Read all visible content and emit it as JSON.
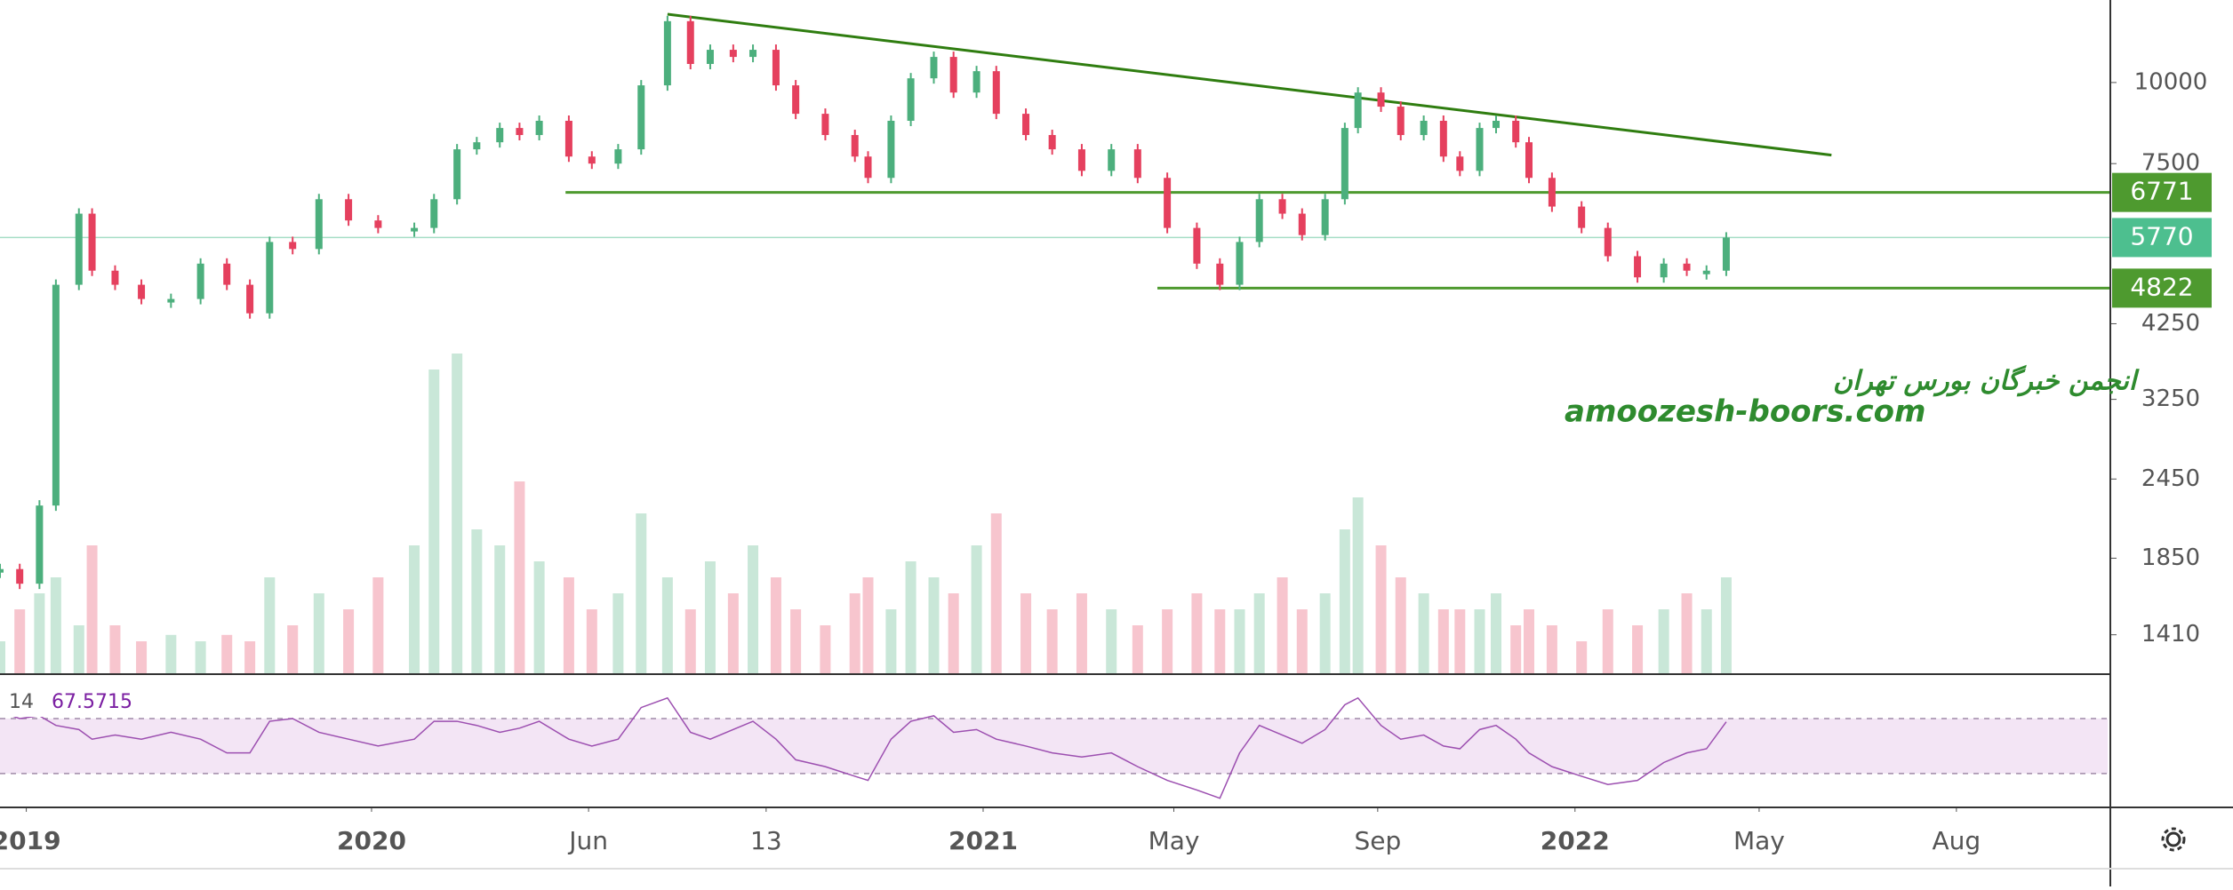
{
  "chart_data": {
    "type": "candlestick",
    "log_scale": true,
    "x": [
      -8,
      -2,
      4,
      9,
      16,
      20,
      27,
      35,
      44,
      53,
      61,
      68,
      74,
      81,
      89,
      98,
      107,
      118,
      124,
      131,
      137,
      144,
      150,
      156,
      165,
      172,
      180,
      187,
      195,
      202,
      208,
      215,
      221,
      228,
      234,
      243,
      252,
      256,
      263,
      269,
      276,
      282,
      289,
      295,
      304,
      312,
      321,
      330,
      338,
      347,
      356,
      363,
      369,
      375,
      382,
      388,
      395,
      401,
      405,
      412,
      418,
      425,
      431,
      436,
      442,
      447,
      453,
      457,
      464,
      473,
      481,
      490,
      498,
      505,
      511,
      517
    ],
    "close": [
      1780,
      1690,
      2230,
      4880,
      6280,
      5130,
      4880,
      4640,
      4640,
      5260,
      4880,
      4410,
      5680,
      5540,
      6610,
      6130,
      5970,
      5970,
      6610,
      7890,
      8090,
      8510,
      8300,
      8730,
      7690,
      7500,
      7890,
      9900,
      12430,
      10680,
      11230,
      10950,
      11230,
      9900,
      8950,
      8300,
      7690,
      7130,
      8730,
      10150,
      10950,
      9650,
      10410,
      8950,
      8300,
      7890,
      7310,
      7890,
      7130,
      5970,
      5260,
      4880,
      5680,
      6610,
      6280,
      5820,
      6610,
      8510,
      9650,
      9180,
      8300,
      8730,
      7690,
      7310,
      8510,
      8730,
      8090,
      7130,
      6440,
      5970,
      5400,
      5010,
      5260,
      5130,
      5130,
      5770
    ],
    "volume": [
      10,
      20,
      25,
      30,
      15,
      40,
      15,
      10,
      12,
      10,
      12,
      10,
      30,
      15,
      25,
      20,
      30,
      40,
      95,
      100,
      45,
      40,
      60,
      35,
      30,
      20,
      25,
      50,
      30,
      20,
      35,
      25,
      40,
      30,
      20,
      15,
      25,
      30,
      20,
      35,
      30,
      25,
      40,
      50,
      25,
      20,
      25,
      20,
      15,
      20,
      25,
      20,
      20,
      25,
      30,
      20,
      25,
      45,
      55,
      40,
      30,
      25,
      20,
      20,
      20,
      25,
      15,
      20,
      15,
      10,
      20,
      15,
      20,
      25,
      20,
      30
    ],
    "rsi": [
      75,
      70,
      72,
      65,
      62,
      55,
      58,
      55,
      60,
      55,
      45,
      45,
      68,
      70,
      60,
      55,
      50,
      55,
      68,
      68,
      65,
      60,
      63,
      68,
      55,
      50,
      55,
      78,
      85,
      60,
      55,
      62,
      68,
      55,
      40,
      35,
      28,
      25,
      55,
      68,
      72,
      60,
      62,
      55,
      50,
      45,
      42,
      45,
      35,
      25,
      18,
      12,
      45,
      65,
      58,
      52,
      62,
      80,
      85,
      65,
      55,
      58,
      50,
      48,
      62,
      65,
      55,
      45,
      35,
      28,
      22,
      25,
      38,
      45,
      48,
      67.5715
    ],
    "up_color": "#4caf7d",
    "down_color": "#e5405e",
    "xlim": [
      -8,
      633
    ],
    "xticks": [
      {
        "value": 0,
        "label": "2019"
      },
      {
        "value": 105,
        "label": "2020"
      },
      {
        "value": 171,
        "label": "Jun"
      },
      {
        "value": 225,
        "label": "13"
      },
      {
        "value": 291,
        "label": "2021"
      },
      {
        "value": 349,
        "label": "May"
      },
      {
        "value": 411,
        "label": "Sep"
      },
      {
        "value": 471,
        "label": "2022"
      },
      {
        "value": 527,
        "label": "May"
      },
      {
        "value": 587,
        "label": "Aug"
      }
    ],
    "ylim": [
      1230,
      13400
    ],
    "yticks": [
      1410,
      1850,
      2450,
      3250,
      4250,
      7500,
      10000
    ],
    "levels": [
      {
        "value": 6771,
        "start": 164,
        "color": "#4e9a2f"
      },
      {
        "value": 5770,
        "start": -8,
        "color": "#4dbf8f"
      },
      {
        "value": 4822,
        "start": 344,
        "color": "#4e9a2f"
      }
    ],
    "trendline": {
      "x": [
        195,
        549
      ],
      "y": [
        12740,
        7730
      ],
      "color": "#2f7d10"
    },
    "rsi_length": 14,
    "rsi_ylim": [
      6,
      101
    ],
    "rsi_bands": [
      30,
      70
    ],
    "annotations": [
      "انجمن خبرگان بورس تهران",
      "amoozesh-boors.com"
    ]
  }
}
